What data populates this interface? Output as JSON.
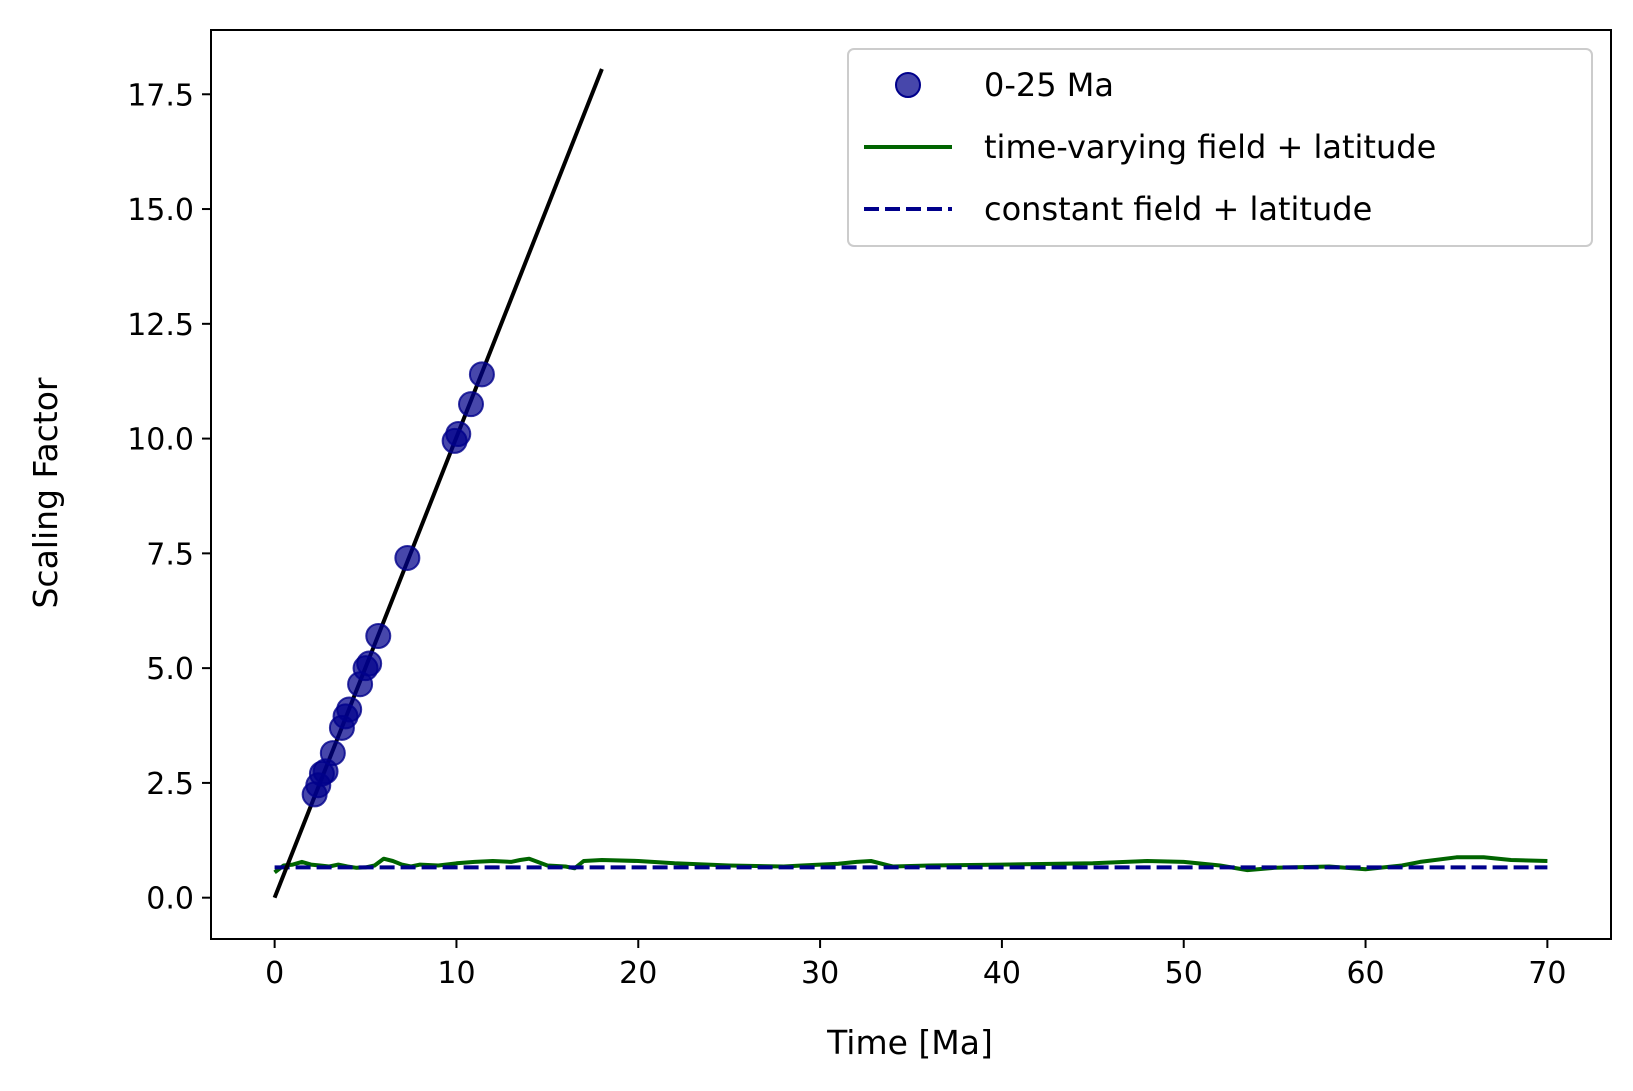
{
  "chart_data": {
    "type": "line",
    "xlabel": "Time [Ma]",
    "ylabel": "Scaling Factor",
    "xlim": [
      -3.5,
      73.5
    ],
    "ylim": [
      -0.9,
      18.9
    ],
    "x_ticks": [
      0,
      10,
      20,
      30,
      40,
      50,
      60,
      70
    ],
    "x_tick_labels": [
      "0",
      "10",
      "20",
      "30",
      "40",
      "50",
      "60",
      "70"
    ],
    "y_ticks": [
      0,
      2.5,
      5,
      7.5,
      10,
      12.5,
      15,
      17.5
    ],
    "y_tick_labels": [
      "0.0",
      "2.5",
      "5.0",
      "7.5",
      "10.0",
      "12.5",
      "15.0",
      "17.5"
    ],
    "grid": false,
    "legend_position": "top-right",
    "series": [
      {
        "name": "0-25 Ma",
        "style": "scatter",
        "color": "#00008b",
        "x": [
          2.2,
          2.4,
          2.6,
          2.8,
          3.2,
          3.7,
          3.9,
          4.1,
          4.7,
          5.0,
          5.2,
          5.7,
          7.3,
          9.9,
          10.1,
          10.8,
          11.4
        ],
        "y": [
          2.25,
          2.45,
          2.7,
          2.75,
          3.15,
          3.7,
          3.95,
          4.1,
          4.65,
          5.0,
          5.1,
          5.7,
          7.4,
          9.95,
          10.1,
          10.75,
          11.4
        ]
      },
      {
        "name": "time-varying field + latitude",
        "style": "line",
        "color": "#006400",
        "x": [
          0,
          0.5,
          1,
          1.5,
          2,
          2.5,
          3,
          3.5,
          4,
          4.5,
          5,
          5.5,
          6,
          6.5,
          7,
          7.5,
          8,
          9,
          10,
          11,
          12,
          13,
          13.5,
          14,
          15,
          16,
          16.5,
          17,
          18,
          20,
          22,
          25,
          28,
          29,
          30,
          31,
          32,
          32.8,
          34,
          36,
          40,
          45,
          48,
          50,
          52,
          53.5,
          55,
          58,
          60,
          62,
          63,
          65,
          66.5,
          68,
          70
        ],
        "y": [
          0.55,
          0.7,
          0.72,
          0.78,
          0.72,
          0.7,
          0.68,
          0.72,
          0.68,
          0.65,
          0.66,
          0.7,
          0.85,
          0.8,
          0.72,
          0.68,
          0.72,
          0.7,
          0.75,
          0.78,
          0.8,
          0.78,
          0.82,
          0.85,
          0.7,
          0.68,
          0.64,
          0.8,
          0.82,
          0.8,
          0.75,
          0.7,
          0.68,
          0.7,
          0.72,
          0.74,
          0.78,
          0.8,
          0.68,
          0.7,
          0.72,
          0.75,
          0.8,
          0.78,
          0.7,
          0.6,
          0.65,
          0.68,
          0.62,
          0.7,
          0.78,
          0.88,
          0.88,
          0.82,
          0.8
        ]
      },
      {
        "name": "constant field + latitude",
        "style": "dashed",
        "color": "#00008b",
        "x": [
          0,
          70
        ],
        "y": [
          0.66,
          0.66
        ]
      },
      {
        "name": "",
        "style": "line",
        "color": "#000000",
        "x": [
          0,
          18
        ],
        "y": [
          0,
          18.05
        ]
      }
    ]
  }
}
